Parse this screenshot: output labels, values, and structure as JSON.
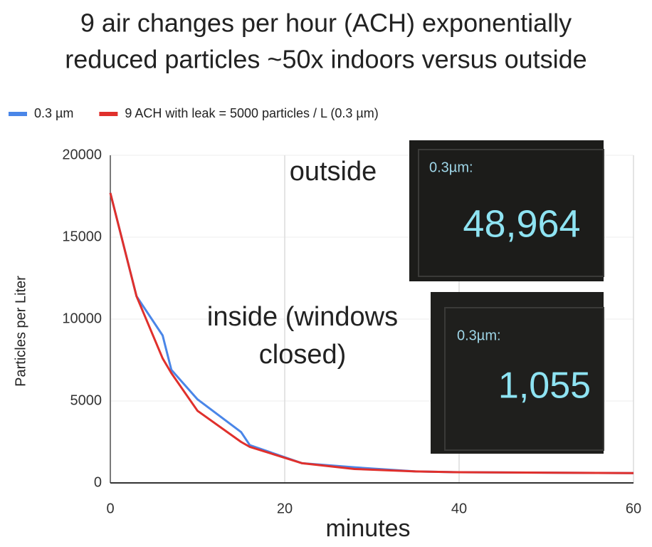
{
  "chart_data": {
    "type": "line",
    "title_lines": [
      "9 air changes per hour (ACH) exponentially",
      "reduced particles ~50x indoors versus outside"
    ],
    "x_label": "minutes",
    "y_label": "Particles per Liter",
    "x": [
      0,
      3,
      6,
      7,
      10,
      15,
      16,
      22,
      28,
      35,
      40,
      60
    ],
    "series": [
      {
        "name": "0.3 µm",
        "color": "#4a86e8",
        "values": [
          17700,
          11400,
          9000,
          6900,
          5100,
          3100,
          2300,
          1200,
          950,
          700,
          650,
          600
        ]
      },
      {
        "name": "9 ACH with leak = 5000 particles / L (0.3 µm)",
        "color": "#e0302c",
        "values": [
          17700,
          11400,
          7600,
          6700,
          4400,
          2500,
          2200,
          1200,
          850,
          700,
          650,
          600
        ]
      }
    ],
    "xlim": [
      0,
      60
    ],
    "xticks": [
      0,
      20,
      40,
      60
    ],
    "ylim": [
      0,
      20000
    ],
    "yticks": [
      0,
      5000,
      10000,
      15000,
      20000
    ],
    "grid": true,
    "legend": "top",
    "annotations": [
      "outside",
      "inside (windows",
      "closed)"
    ],
    "insets": [
      {
        "label": "0.3µm:",
        "reading": "48,964"
      },
      {
        "label": "0.3µm:",
        "reading": "1,055"
      }
    ]
  }
}
